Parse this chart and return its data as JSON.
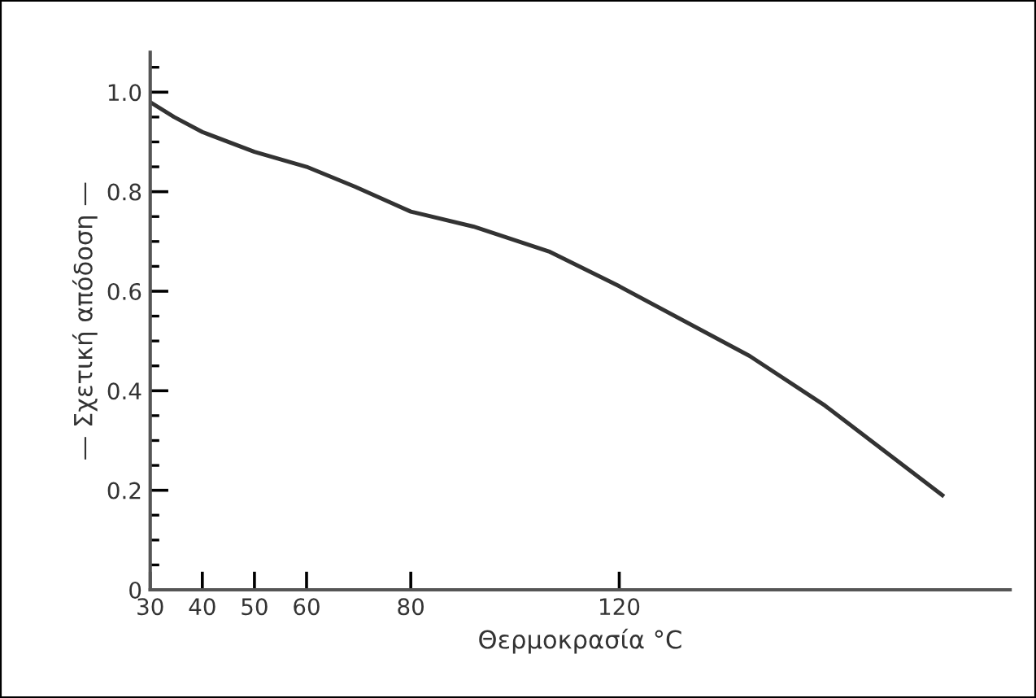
{
  "chart_data": {
    "type": "line",
    "xlabel": "Θερμοκρασία °C",
    "ylabel": "— Σχετική απόδοση —",
    "x": [
      30,
      34.6,
      40,
      50,
      60,
      69.3,
      80,
      92,
      106.5,
      120,
      145,
      159.5,
      182
    ],
    "series": [
      {
        "color": "#333333",
        "values": [
          0.98,
          0.95,
          0.92,
          0.88,
          0.85,
          0.81,
          0.76,
          0.73,
          0.68,
          0.61,
          0.47,
          0.37,
          0.19
        ]
      }
    ],
    "xlim": [
      30,
      195
    ],
    "xticks": [
      30,
      40,
      50,
      60,
      80,
      120
    ],
    "ylim": [
      0,
      1.08
    ],
    "yticks": [
      {
        "value": 0,
        "label": "0"
      },
      0.2,
      0.4,
      0.6,
      0.8,
      {
        "value": 1.0,
        "label": "1.0"
      }
    ],
    "grid": false,
    "legend": false,
    "marker": "none",
    "line_style": "solid"
  }
}
